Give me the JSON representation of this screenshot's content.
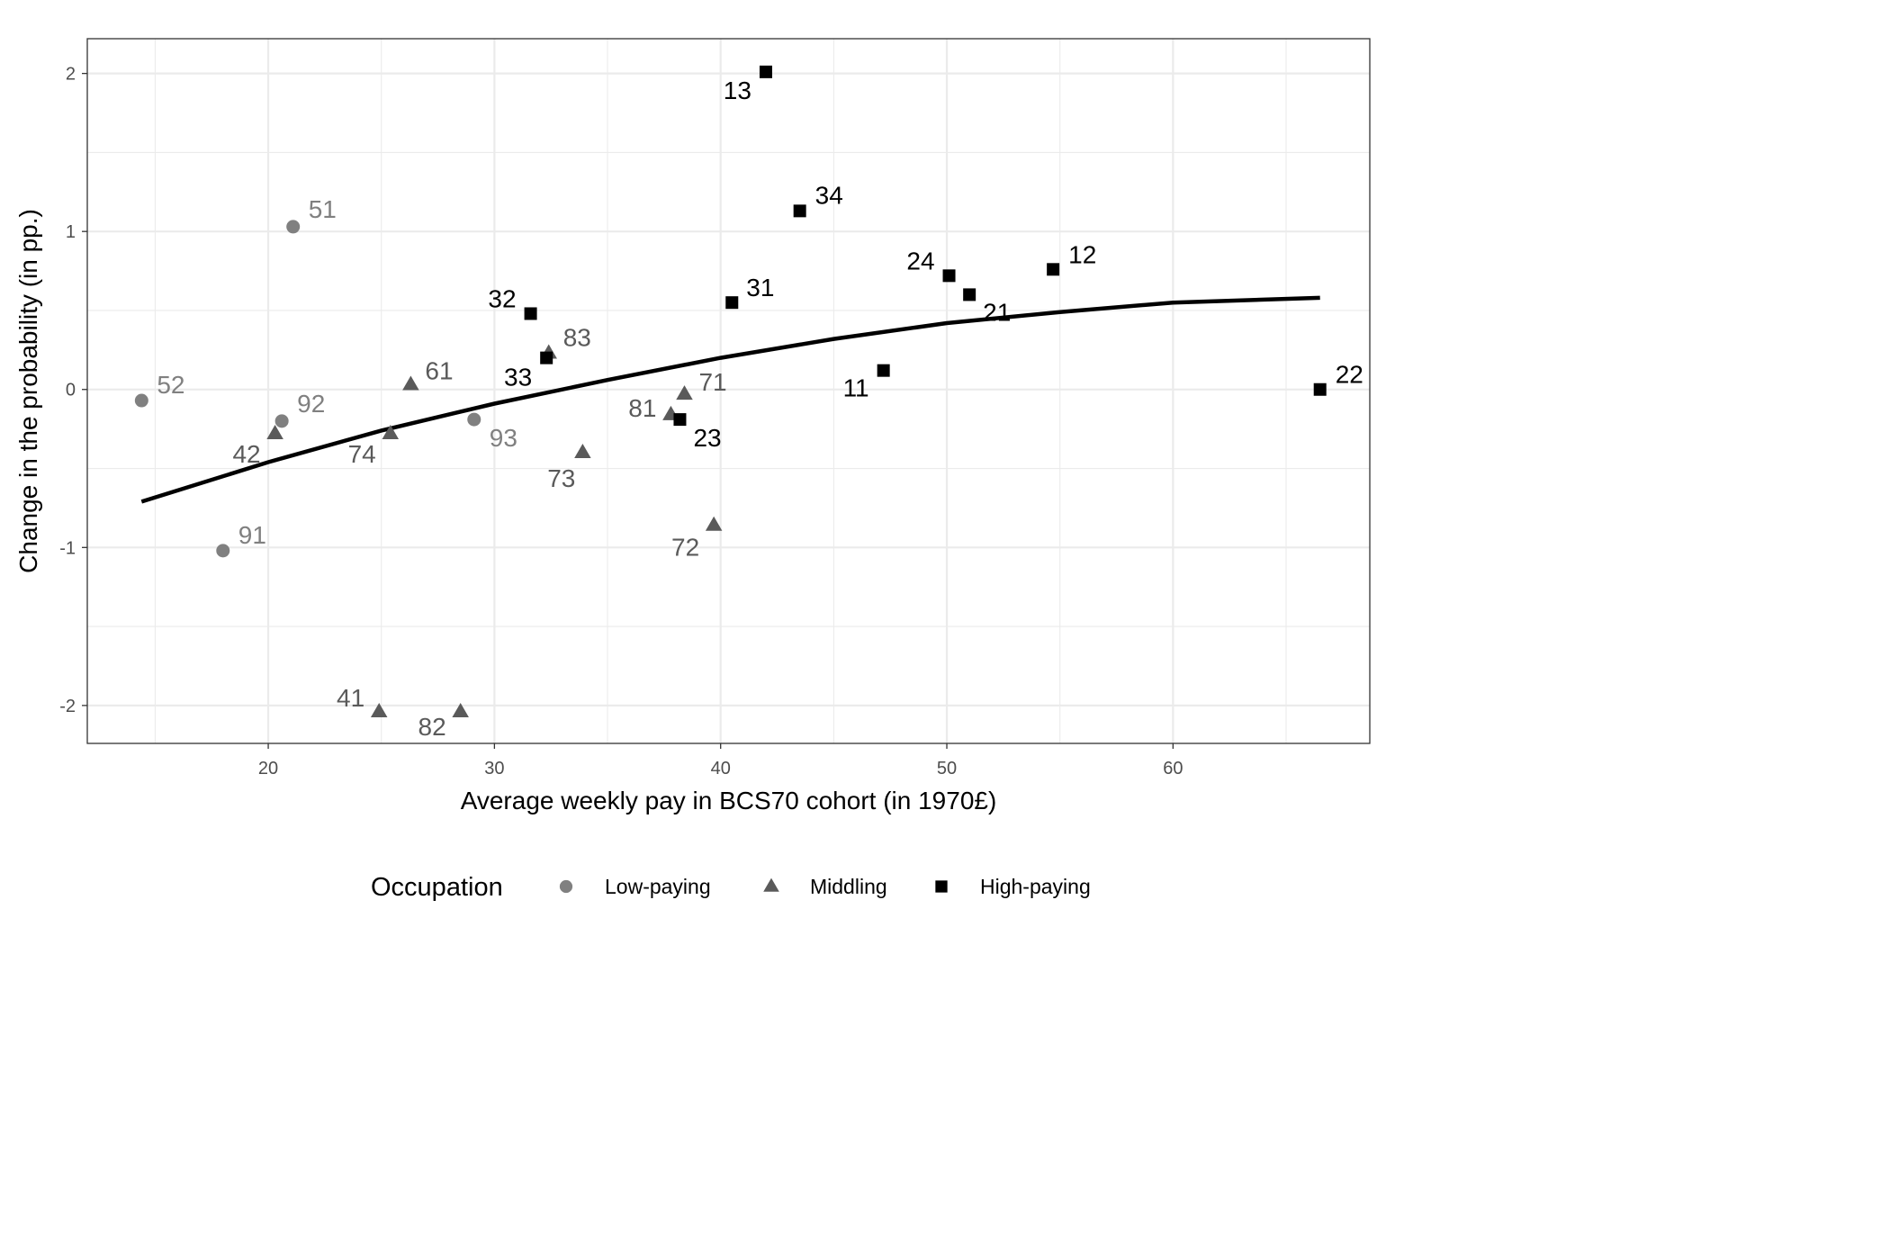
{
  "chart_data": {
    "type": "scatter",
    "title": "",
    "xlabel": "Average weekly pay in BCS70 cohort (in 1970£)",
    "ylabel": "Change in the probability (in pp.)",
    "xlim": [
      12.0,
      68.7
    ],
    "ylim": [
      -2.24,
      2.22
    ],
    "x_ticks": [
      20,
      30,
      40,
      50,
      60
    ],
    "y_ticks": [
      -2,
      -1,
      0,
      1,
      2
    ],
    "grid": true,
    "legend": {
      "title": "Occupation",
      "position": "bottom",
      "entries": [
        "Low-paying",
        "Middling",
        "High-paying"
      ]
    },
    "colors": {
      "Low-paying": "#808080",
      "Middling": "#5a5a5a",
      "High-paying": "#000000",
      "fit_line": "#000000",
      "grid": "#ebebeb",
      "panel_border": "#333333"
    },
    "series": [
      {
        "name": "Low-paying",
        "marker": "circle",
        "points": [
          {
            "x": 21.1,
            "y": 1.03,
            "label": "51"
          },
          {
            "x": 14.4,
            "y": -0.07,
            "label": "52"
          },
          {
            "x": 20.6,
            "y": -0.2,
            "label": "92"
          },
          {
            "x": 29.1,
            "y": -0.19,
            "label": "93"
          },
          {
            "x": 18.0,
            "y": -1.02,
            "label": "91"
          }
        ]
      },
      {
        "name": "Middling",
        "marker": "triangle",
        "points": [
          {
            "x": 26.3,
            "y": 0.03,
            "label": "61"
          },
          {
            "x": 32.4,
            "y": 0.23,
            "label": "83"
          },
          {
            "x": 20.3,
            "y": -0.28,
            "label": "42"
          },
          {
            "x": 25.4,
            "y": -0.28,
            "label": "74"
          },
          {
            "x": 33.9,
            "y": -0.4,
            "label": "73"
          },
          {
            "x": 37.8,
            "y": -0.16,
            "label": "81"
          },
          {
            "x": 38.4,
            "y": -0.03,
            "label": "71"
          },
          {
            "x": 39.7,
            "y": -0.86,
            "label": "72"
          },
          {
            "x": 24.9,
            "y": -2.04,
            "label": "41"
          },
          {
            "x": 28.5,
            "y": -2.04,
            "label": "82"
          }
        ]
      },
      {
        "name": "High-paying",
        "marker": "square",
        "points": [
          {
            "x": 42.0,
            "y": 2.01,
            "label": "13"
          },
          {
            "x": 43.5,
            "y": 1.13,
            "label": "34"
          },
          {
            "x": 31.6,
            "y": 0.48,
            "label": "32"
          },
          {
            "x": 32.3,
            "y": 0.2,
            "label": "33"
          },
          {
            "x": 40.5,
            "y": 0.55,
            "label": "31"
          },
          {
            "x": 38.2,
            "y": -0.19,
            "label": "23"
          },
          {
            "x": 47.2,
            "y": 0.12,
            "label": "11"
          },
          {
            "x": 50.1,
            "y": 0.72,
            "label": "24"
          },
          {
            "x": 51.0,
            "y": 0.6,
            "label": "21"
          },
          {
            "x": 54.7,
            "y": 0.76,
            "label": "12"
          },
          {
            "x": 66.5,
            "y": 0.0,
            "label": "22"
          }
        ]
      }
    ],
    "fit_line": {
      "type": "quadratic",
      "x": [
        14.4,
        20.0,
        25.0,
        30.0,
        35.0,
        40.0,
        45.0,
        50.0,
        55.0,
        60.0,
        66.5
      ],
      "y": [
        -0.71,
        -0.46,
        -0.26,
        -0.09,
        0.06,
        0.2,
        0.32,
        0.42,
        0.49,
        0.55,
        0.58
      ]
    }
  }
}
